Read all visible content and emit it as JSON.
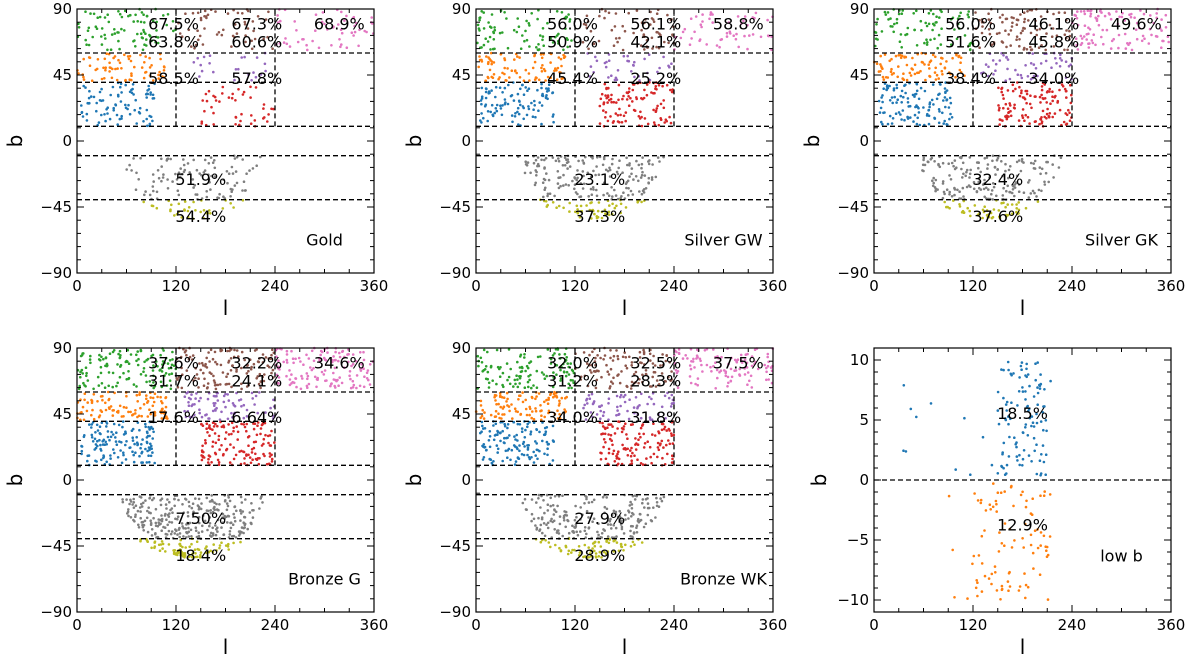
{
  "chart_data": [
    {
      "type": "scatter",
      "panel": "Gold",
      "xlabel": "l",
      "ylabel": "b",
      "xlim": [
        0,
        360
      ],
      "ylim": [
        -90,
        90
      ],
      "xticks": [
        "0",
        "120",
        "240",
        "360"
      ],
      "yticks": [
        "90",
        "45",
        "0",
        "−45",
        "−90"
      ],
      "regions": [
        {
          "l": [
            0,
            120
          ],
          "b": [
            60,
            90
          ],
          "color": "#2ca02c",
          "value": "67.5%",
          "density": 0.45
        },
        {
          "l": [
            120,
            240
          ],
          "b": [
            60,
            90
          ],
          "color": "#8c564b",
          "value": "67.3%",
          "density": 0.3
        },
        {
          "l": [
            240,
            360
          ],
          "b": [
            60,
            90
          ],
          "color": "#e377c2",
          "value": "68.9%",
          "density": 0.3
        },
        {
          "l": [
            0,
            120
          ],
          "b": [
            40,
            60
          ],
          "color": "#ff7f0e",
          "value": "63.8%",
          "density": 0.6
        },
        {
          "l": [
            120,
            240
          ],
          "b": [
            40,
            60
          ],
          "color": "#9467bd",
          "value": "60.6%",
          "density": 0.2
        },
        {
          "l": [
            0,
            120
          ],
          "b": [
            10,
            40
          ],
          "color": "#1f77b4",
          "value": "58.5%",
          "density": 0.6
        },
        {
          "l": [
            120,
            240
          ],
          "b": [
            10,
            40
          ],
          "color": "#d62728",
          "value": "57.8%",
          "density": 0.3
        },
        {
          "l": [
            0,
            360
          ],
          "b": [
            -40,
            -10
          ],
          "color": "#7f7f7f",
          "value": "51.9%",
          "density": 0.35
        },
        {
          "l": [
            0,
            360
          ],
          "b": [
            -90,
            -40
          ],
          "color": "#bcbd22",
          "value": "54.4%",
          "density": 0.35
        }
      ]
    },
    {
      "type": "scatter",
      "panel": "Silver GW",
      "xlabel": "l",
      "ylabel": "b",
      "xlim": [
        0,
        360
      ],
      "ylim": [
        -90,
        90
      ],
      "xticks": [
        "0",
        "120",
        "240",
        "360"
      ],
      "yticks": [
        "90",
        "45",
        "0",
        "−45",
        "−90"
      ],
      "regions": [
        {
          "l": [
            0,
            120
          ],
          "b": [
            60,
            90
          ],
          "color": "#2ca02c",
          "value": "56.0%",
          "density": 0.45
        },
        {
          "l": [
            120,
            240
          ],
          "b": [
            60,
            90
          ],
          "color": "#8c564b",
          "value": "56.1%",
          "density": 0.35
        },
        {
          "l": [
            240,
            360
          ],
          "b": [
            60,
            90
          ],
          "color": "#e377c2",
          "value": "58.8%",
          "density": 0.3
        },
        {
          "l": [
            0,
            120
          ],
          "b": [
            40,
            60
          ],
          "color": "#ff7f0e",
          "value": "50.9%",
          "density": 0.75
        },
        {
          "l": [
            120,
            240
          ],
          "b": [
            40,
            60
          ],
          "color": "#9467bd",
          "value": "42.1%",
          "density": 0.35
        },
        {
          "l": [
            0,
            120
          ],
          "b": [
            10,
            40
          ],
          "color": "#1f77b4",
          "value": "45.4%",
          "density": 0.7
        },
        {
          "l": [
            120,
            240
          ],
          "b": [
            10,
            40
          ],
          "color": "#d62728",
          "value": "25.2%",
          "density": 0.75
        },
        {
          "l": [
            0,
            360
          ],
          "b": [
            -40,
            -10
          ],
          "color": "#7f7f7f",
          "value": "23.1%",
          "density": 0.6
        },
        {
          "l": [
            0,
            360
          ],
          "b": [
            -90,
            -40
          ],
          "color": "#bcbd22",
          "value": "37.3%",
          "density": 0.55
        }
      ]
    },
    {
      "type": "scatter",
      "panel": "Silver GK",
      "xlabel": "l",
      "ylabel": "b",
      "xlim": [
        0,
        360
      ],
      "ylim": [
        -90,
        90
      ],
      "xticks": [
        "0",
        "120",
        "240",
        "360"
      ],
      "yticks": [
        "90",
        "45",
        "0",
        "−45",
        "−90"
      ],
      "regions": [
        {
          "l": [
            0,
            120
          ],
          "b": [
            60,
            90
          ],
          "color": "#2ca02c",
          "value": "56.0%",
          "density": 0.45
        },
        {
          "l": [
            120,
            240
          ],
          "b": [
            60,
            90
          ],
          "color": "#8c564b",
          "value": "46.1%",
          "density": 0.5
        },
        {
          "l": [
            240,
            360
          ],
          "b": [
            60,
            90
          ],
          "color": "#e377c2",
          "value": "49.6%",
          "density": 0.55
        },
        {
          "l": [
            0,
            120
          ],
          "b": [
            40,
            60
          ],
          "color": "#ff7f0e",
          "value": "51.6%",
          "density": 0.75
        },
        {
          "l": [
            120,
            240
          ],
          "b": [
            40,
            60
          ],
          "color": "#9467bd",
          "value": "45.8%",
          "density": 0.45
        },
        {
          "l": [
            0,
            120
          ],
          "b": [
            10,
            40
          ],
          "color": "#1f77b4",
          "value": "38.4%",
          "density": 0.8
        },
        {
          "l": [
            120,
            240
          ],
          "b": [
            10,
            40
          ],
          "color": "#d62728",
          "value": "34.0%",
          "density": 0.85
        },
        {
          "l": [
            0,
            360
          ],
          "b": [
            -40,
            -10
          ],
          "color": "#7f7f7f",
          "value": "32.4%",
          "density": 0.6
        },
        {
          "l": [
            0,
            360
          ],
          "b": [
            -90,
            -40
          ],
          "color": "#bcbd22",
          "value": "37.6%",
          "density": 0.55
        }
      ]
    },
    {
      "type": "scatter",
      "panel": "Bronze G",
      "xlabel": "l",
      "ylabel": "b",
      "xlim": [
        0,
        360
      ],
      "ylim": [
        -90,
        90
      ],
      "xticks": [
        "0",
        "120",
        "240",
        "360"
      ],
      "yticks": [
        "90",
        "45",
        "0",
        "−45",
        "−90"
      ],
      "regions": [
        {
          "l": [
            0,
            120
          ],
          "b": [
            60,
            90
          ],
          "color": "#2ca02c",
          "value": "37.6%",
          "density": 0.7
        },
        {
          "l": [
            120,
            240
          ],
          "b": [
            60,
            90
          ],
          "color": "#8c564b",
          "value": "32.2%",
          "density": 0.7
        },
        {
          "l": [
            240,
            360
          ],
          "b": [
            60,
            90
          ],
          "color": "#e377c2",
          "value": "34.6%",
          "density": 0.75
        },
        {
          "l": [
            0,
            120
          ],
          "b": [
            40,
            60
          ],
          "color": "#ff7f0e",
          "value": "31.7%",
          "density": 0.9
        },
        {
          "l": [
            120,
            240
          ],
          "b": [
            40,
            60
          ],
          "color": "#9467bd",
          "value": "24.1%",
          "density": 0.7
        },
        {
          "l": [
            0,
            120
          ],
          "b": [
            10,
            40
          ],
          "color": "#1f77b4",
          "value": "17.6%",
          "density": 0.95
        },
        {
          "l": [
            120,
            240
          ],
          "b": [
            10,
            40
          ],
          "color": "#d62728",
          "value": "6.64%",
          "density": 0.95
        },
        {
          "l": [
            0,
            360
          ],
          "b": [
            -40,
            -10
          ],
          "color": "#7f7f7f",
          "value": "7.50%",
          "density": 0.95
        },
        {
          "l": [
            0,
            360
          ],
          "b": [
            -90,
            -40
          ],
          "color": "#bcbd22",
          "value": "18.4%",
          "density": 0.85
        }
      ]
    },
    {
      "type": "scatter",
      "panel": "Bronze WK",
      "xlabel": "l",
      "ylabel": "b",
      "xlim": [
        0,
        360
      ],
      "ylim": [
        -90,
        90
      ],
      "xticks": [
        "0",
        "120",
        "240",
        "360"
      ],
      "yticks": [
        "90",
        "45",
        "0",
        "−45",
        "−90"
      ],
      "regions": [
        {
          "l": [
            0,
            120
          ],
          "b": [
            60,
            90
          ],
          "color": "#2ca02c",
          "value": "32.0%",
          "density": 0.65
        },
        {
          "l": [
            120,
            240
          ],
          "b": [
            60,
            90
          ],
          "color": "#8c564b",
          "value": "32.5%",
          "density": 0.6
        },
        {
          "l": [
            240,
            360
          ],
          "b": [
            60,
            90
          ],
          "color": "#e377c2",
          "value": "37.5%",
          "density": 0.6
        },
        {
          "l": [
            0,
            120
          ],
          "b": [
            40,
            60
          ],
          "color": "#ff7f0e",
          "value": "31.2%",
          "density": 0.9
        },
        {
          "l": [
            120,
            240
          ],
          "b": [
            40,
            60
          ],
          "color": "#9467bd",
          "value": "28.3%",
          "density": 0.6
        },
        {
          "l": [
            0,
            120
          ],
          "b": [
            10,
            40
          ],
          "color": "#1f77b4",
          "value": "34.0%",
          "density": 0.9
        },
        {
          "l": [
            120,
            240
          ],
          "b": [
            10,
            40
          ],
          "color": "#d62728",
          "value": "31.8%",
          "density": 0.9
        },
        {
          "l": [
            0,
            360
          ],
          "b": [
            -40,
            -10
          ],
          "color": "#7f7f7f",
          "value": "27.9%",
          "density": 0.7
        },
        {
          "l": [
            0,
            360
          ],
          "b": [
            -90,
            -40
          ],
          "color": "#bcbd22",
          "value": "28.9%",
          "density": 0.7
        }
      ]
    },
    {
      "type": "scatter",
      "panel": "low b",
      "xlabel": "l",
      "ylabel": "b",
      "xlim": [
        0,
        360
      ],
      "ylim": [
        -11,
        11
      ],
      "xticks": [
        "0",
        "120",
        "240",
        "360"
      ],
      "yticks": [
        "10",
        "5",
        "0",
        "−5",
        "−10"
      ],
      "regions": [
        {
          "l": [
            0,
            360
          ],
          "b": [
            0,
            10
          ],
          "color": "#1f77b4",
          "value": "18.5%",
          "density": 0.15
        },
        {
          "l": [
            0,
            360
          ],
          "b": [
            -10,
            0
          ],
          "color": "#ff7f0e",
          "value": "12.9%",
          "density": 0.15
        }
      ]
    }
  ]
}
